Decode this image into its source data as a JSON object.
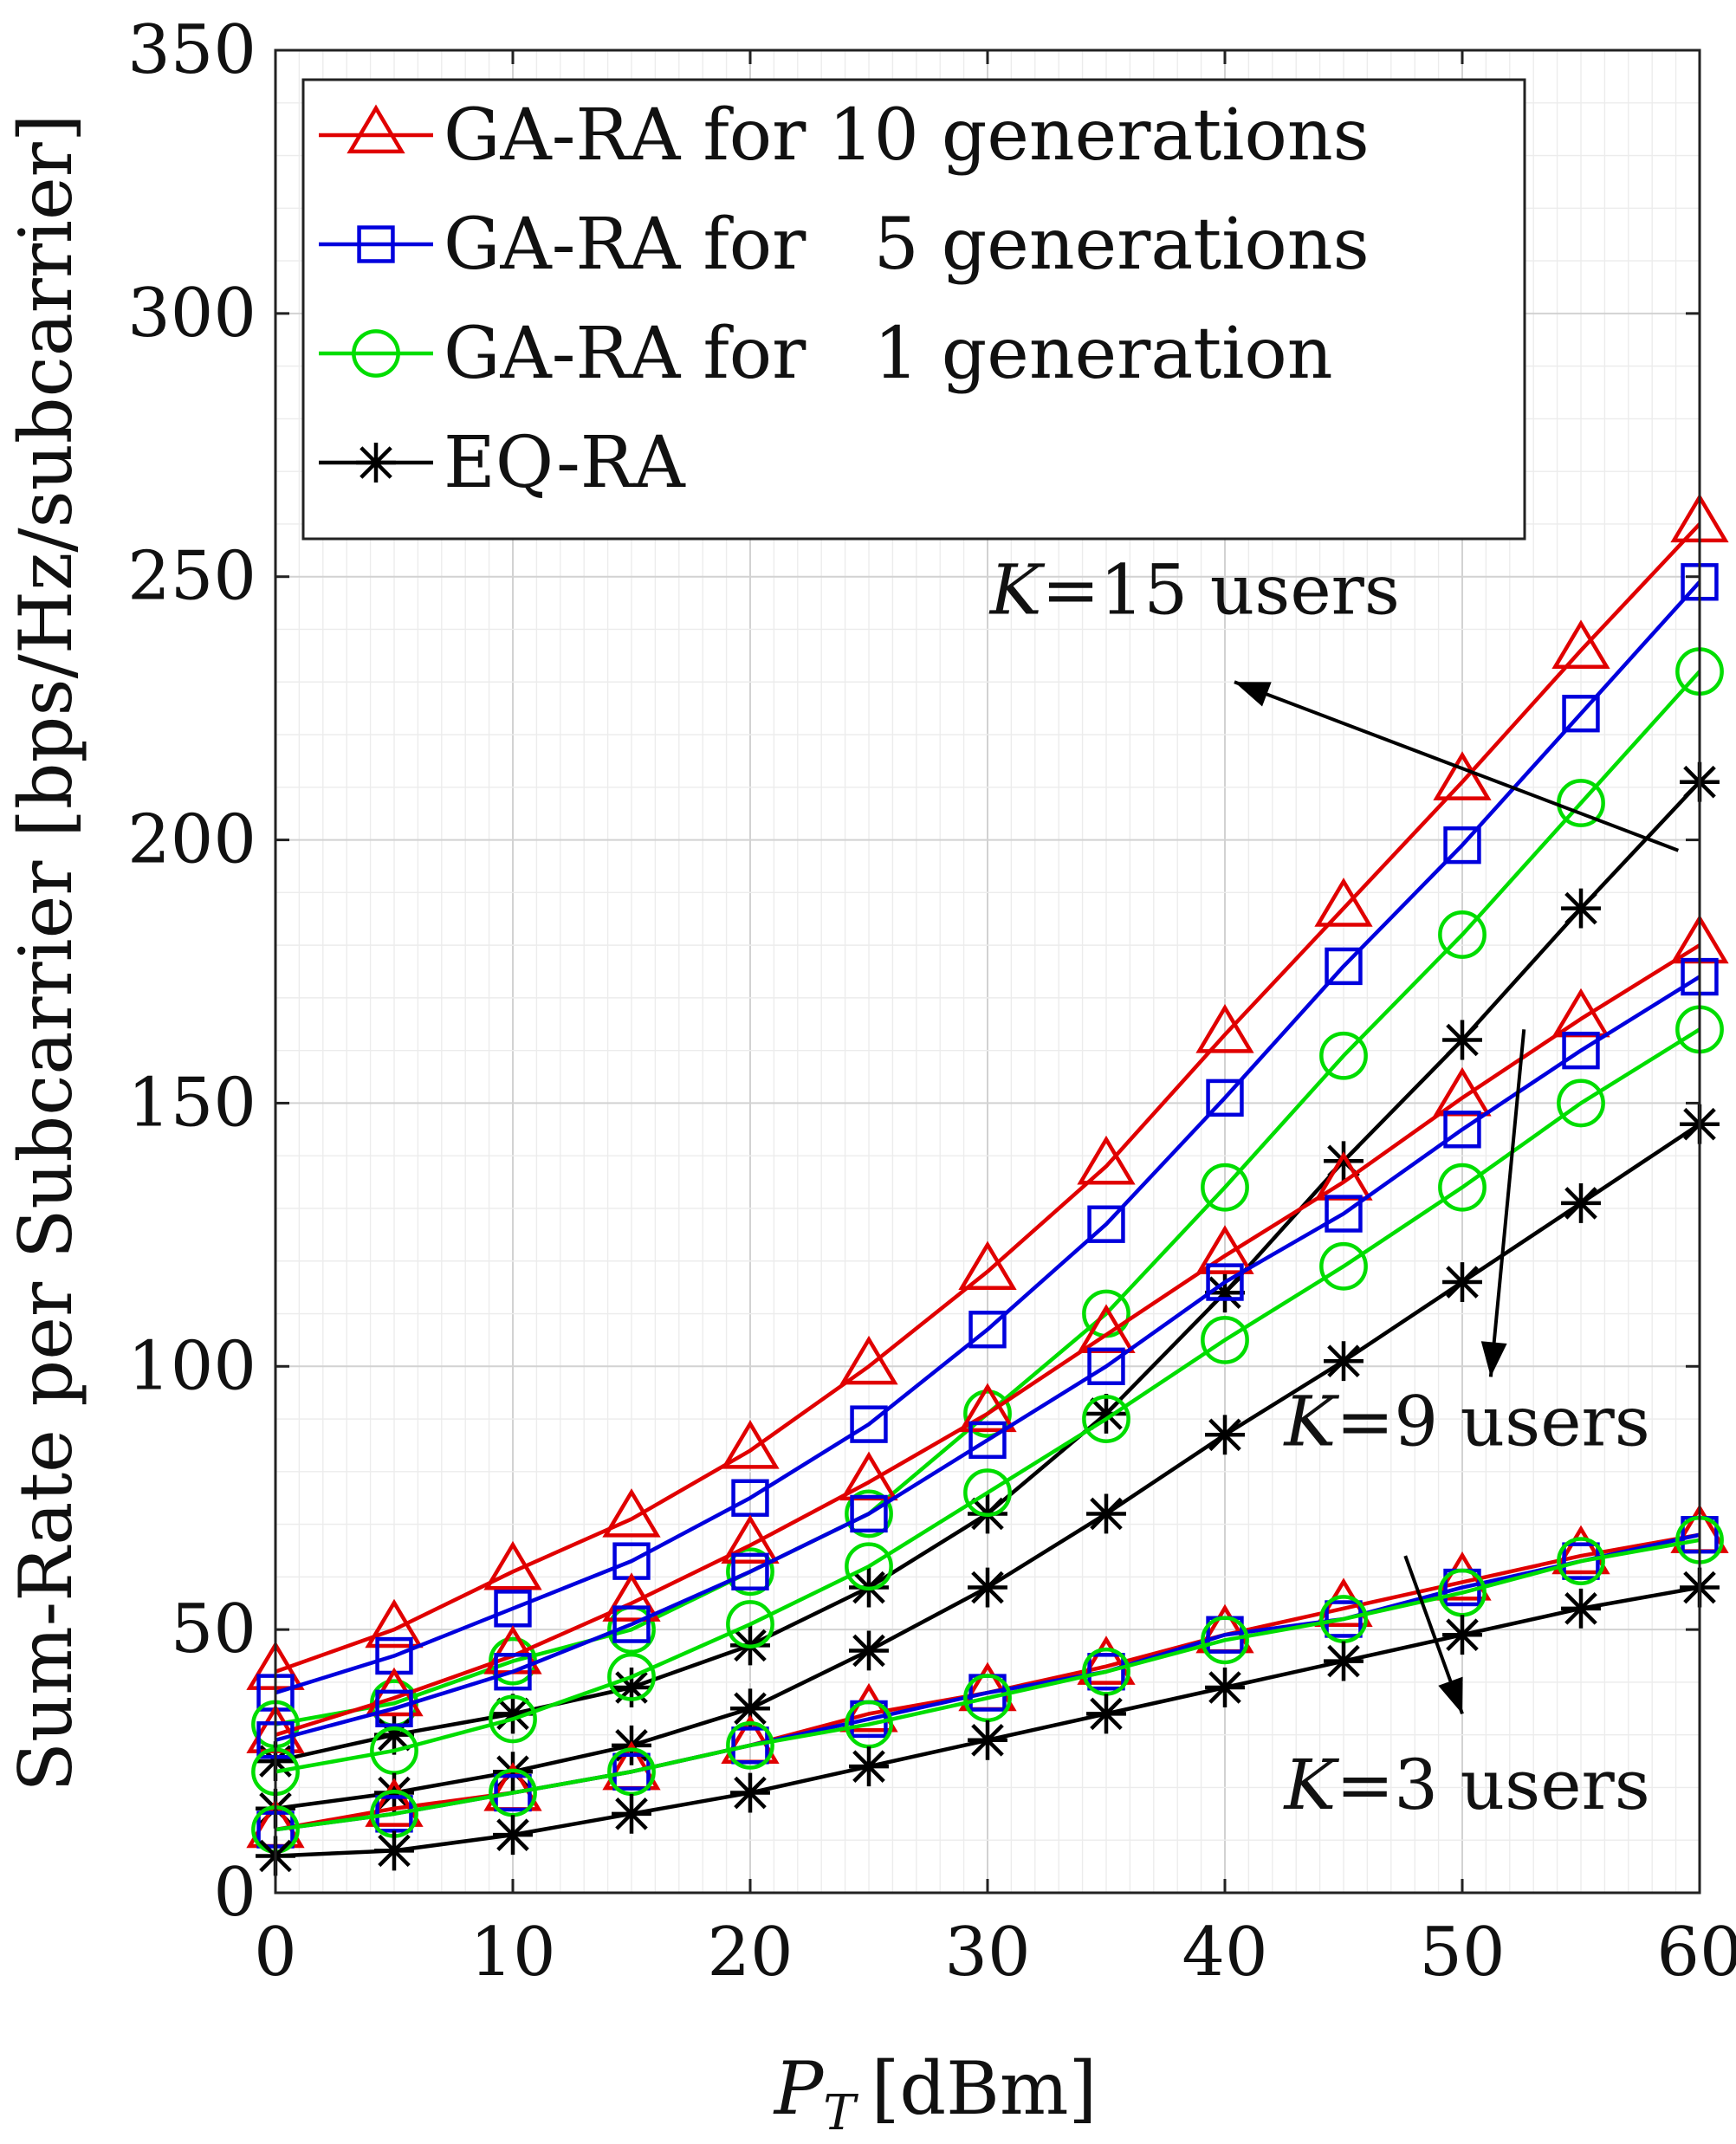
{
  "chart_data": {
    "type": "line",
    "title": "",
    "xlabel_symbol": "P",
    "xlabel_subscript": "T",
    "xlabel_unit": "[dBm]",
    "ylabel": "Sum-Rate per Subcarrier [bps/Hz/subcarrier]",
    "xlim": [
      0,
      60
    ],
    "ylim": [
      0,
      350
    ],
    "x_ticks": [
      0,
      10,
      20,
      30,
      40,
      50,
      60
    ],
    "y_ticks": [
      0,
      50,
      100,
      150,
      200,
      250,
      300,
      350
    ],
    "grid": true,
    "minor_grid": true,
    "legend_location": "top-left",
    "x": [
      0,
      5,
      10,
      15,
      20,
      25,
      30,
      35,
      40,
      45,
      50,
      55,
      60
    ],
    "legend": [
      {
        "key": "ga10",
        "label": "GA-RA for 10 generations",
        "color": "#e00000",
        "marker": "triangle"
      },
      {
        "key": "ga5",
        "label": "GA-RA for   5 generations",
        "color": "#0000dd",
        "marker": "square"
      },
      {
        "key": "ga1",
        "label": "GA-RA for   1 generation",
        "color": "#00dd00",
        "marker": "circle"
      },
      {
        "key": "eq",
        "label": "EQ-RA",
        "color": "#000000",
        "marker": "asterisk"
      }
    ],
    "series": [
      {
        "group": "K=15",
        "key": "ga10",
        "values": [
          42,
          50,
          61,
          71,
          84,
          100,
          118,
          138,
          163,
          187,
          211,
          236,
          260
        ]
      },
      {
        "group": "K=15",
        "key": "ga5",
        "values": [
          38,
          45,
          54,
          63,
          75,
          89,
          107,
          127,
          151,
          176,
          199,
          224,
          249
        ]
      },
      {
        "group": "K=15",
        "key": "ga1",
        "values": [
          32,
          36,
          44,
          50,
          61,
          72,
          91,
          110,
          134,
          159,
          182,
          207,
          232
        ]
      },
      {
        "group": "K=15",
        "key": "eq",
        "values": [
          25,
          30,
          34,
          39,
          47,
          58,
          72,
          91,
          114,
          139,
          162,
          187,
          211
        ]
      },
      {
        "group": "K=9",
        "key": "ga10",
        "values": [
          30,
          37,
          45,
          55,
          66,
          78,
          91,
          106,
          121,
          135,
          151,
          166,
          180
        ]
      },
      {
        "group": "K=9",
        "key": "ga5",
        "values": [
          29,
          35,
          42,
          51,
          61,
          72,
          86,
          100,
          116,
          129,
          145,
          160,
          174
        ]
      },
      {
        "group": "K=9",
        "key": "ga1",
        "values": [
          23,
          27,
          33,
          41,
          51,
          62,
          76,
          90,
          105,
          119,
          134,
          150,
          164
        ]
      },
      {
        "group": "K=9",
        "key": "eq",
        "values": [
          16,
          19,
          23,
          28,
          35,
          46,
          58,
          72,
          87,
          101,
          116,
          131,
          146
        ]
      },
      {
        "group": "K=3",
        "key": "ga10",
        "values": [
          12,
          16,
          19,
          23,
          28,
          34,
          38,
          43,
          49,
          54,
          59,
          64,
          68
        ]
      },
      {
        "group": "K=3",
        "key": "ga5",
        "values": [
          12,
          15,
          19,
          23,
          28,
          33,
          38,
          42,
          49,
          52,
          58,
          63,
          68
        ]
      },
      {
        "group": "K=3",
        "key": "ga1",
        "values": [
          12,
          15,
          19,
          23,
          28,
          32,
          37,
          42,
          48,
          52,
          57,
          63,
          67
        ]
      },
      {
        "group": "K=3",
        "key": "eq",
        "values": [
          7,
          8,
          11,
          15,
          19,
          24,
          29,
          34,
          39,
          44,
          49,
          54,
          58
        ]
      }
    ],
    "annotations": [
      {
        "k": "K",
        "text": "=15 users",
        "label_x": 30.1,
        "label_y": 243,
        "arrow_from": [
          59.1,
          198
        ],
        "arrow_to": [
          40.4,
          230
        ]
      },
      {
        "k": "K",
        "text": "=9 users",
        "label_x": 42.5,
        "label_y": 85,
        "arrow_from": [
          52.6,
          164
        ],
        "arrow_to": [
          51.2,
          98
        ]
      },
      {
        "k": "K",
        "text": "=3 users",
        "label_x": 42.5,
        "label_y": 16,
        "arrow_from": [
          47.6,
          64
        ],
        "arrow_to": [
          50.0,
          34
        ]
      }
    ]
  }
}
